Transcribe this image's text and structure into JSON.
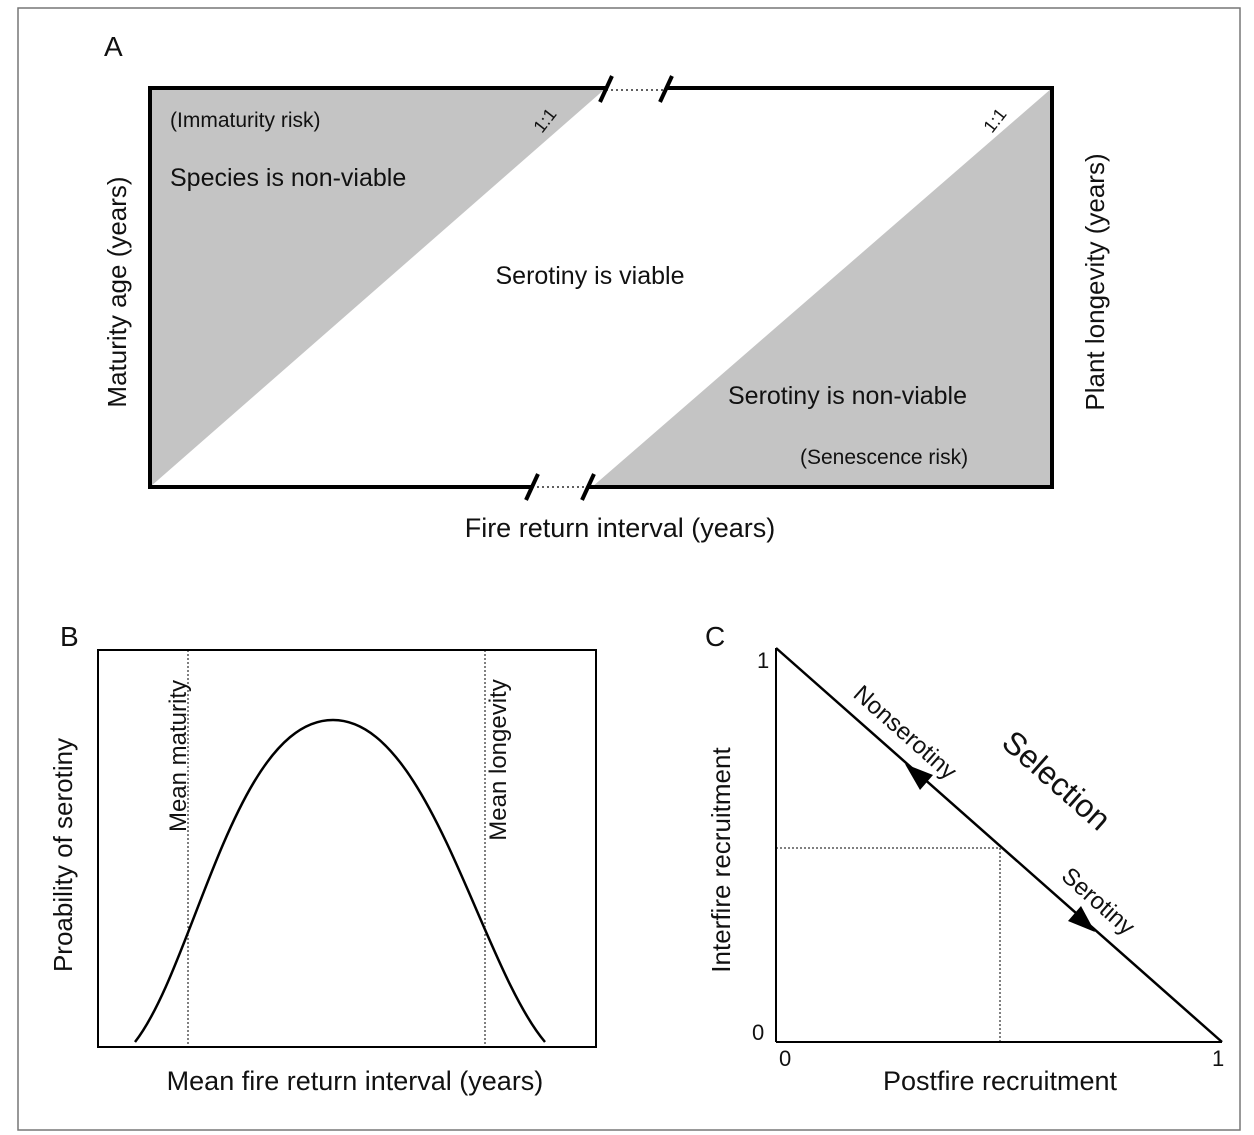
{
  "panel_a": {
    "label": "A",
    "immaturity_risk": "(Immaturity risk)",
    "left_ratio": "1:1",
    "species_non_viable": "Species is non-viable",
    "serotiny_viable": "Serotiny is viable",
    "serotiny_non_viable": "Serotiny is non-viable",
    "senescence_risk": "(Senescence risk)",
    "right_ratio": "1:1",
    "y_label": "Maturity age (years)",
    "y2_label": "Plant longevity (years)",
    "x_label": "Fire return interval (years)"
  },
  "panel_b": {
    "label": "B",
    "mean_maturity": "Mean maturity",
    "mean_longevity": "Mean longevity",
    "y_label": "Proability of serotiny",
    "x_label": "Mean fire return interval (years)"
  },
  "panel_c": {
    "label": "C",
    "y_max": "1",
    "y_min": "0",
    "x_min": "0",
    "x_max": "1",
    "nonserotiny": "Nonserotiny",
    "serotiny": "Serotiny",
    "selection": "Selection",
    "y_label": "Interfire recruitment",
    "x_label": "Postfire recruitment"
  }
}
